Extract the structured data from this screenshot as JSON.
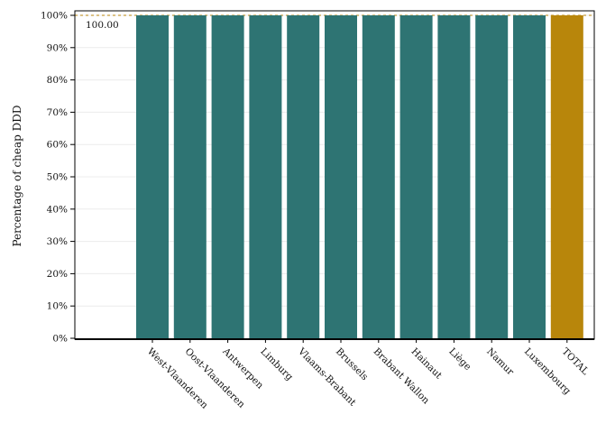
{
  "chart_data": {
    "type": "bar",
    "title": "",
    "xlabel": "",
    "ylabel": "Percentage of cheap DDD",
    "ylim": [
      0,
      100
    ],
    "yticks": [
      0,
      10,
      20,
      30,
      40,
      50,
      60,
      70,
      80,
      90,
      100
    ],
    "ytick_labels": [
      "0%",
      "10%",
      "20%",
      "30%",
      "40%",
      "50%",
      "60%",
      "70%",
      "80%",
      "90%",
      "100%"
    ],
    "categories": [
      "West-Vlaanderen",
      "Oost-Vlaanderen",
      "Antwerpen",
      "Limburg",
      "Vlaams-Brabant",
      "Brussels",
      "Brabant Wallon",
      "Hainaut",
      "Liège",
      "Namur",
      "Luxembourg",
      "TOTAL"
    ],
    "values": [
      100,
      100,
      100,
      100,
      100,
      100,
      100,
      100,
      100,
      100,
      100,
      100
    ],
    "colors": [
      "#2e7473",
      "#2e7473",
      "#2e7473",
      "#2e7473",
      "#2e7473",
      "#2e7473",
      "#2e7473",
      "#2e7473",
      "#2e7473",
      "#2e7473",
      "#2e7473",
      "#b8860b"
    ],
    "reference_line": {
      "value": 100,
      "label": "100.00",
      "color": "#b8860b"
    },
    "grid": true
  }
}
